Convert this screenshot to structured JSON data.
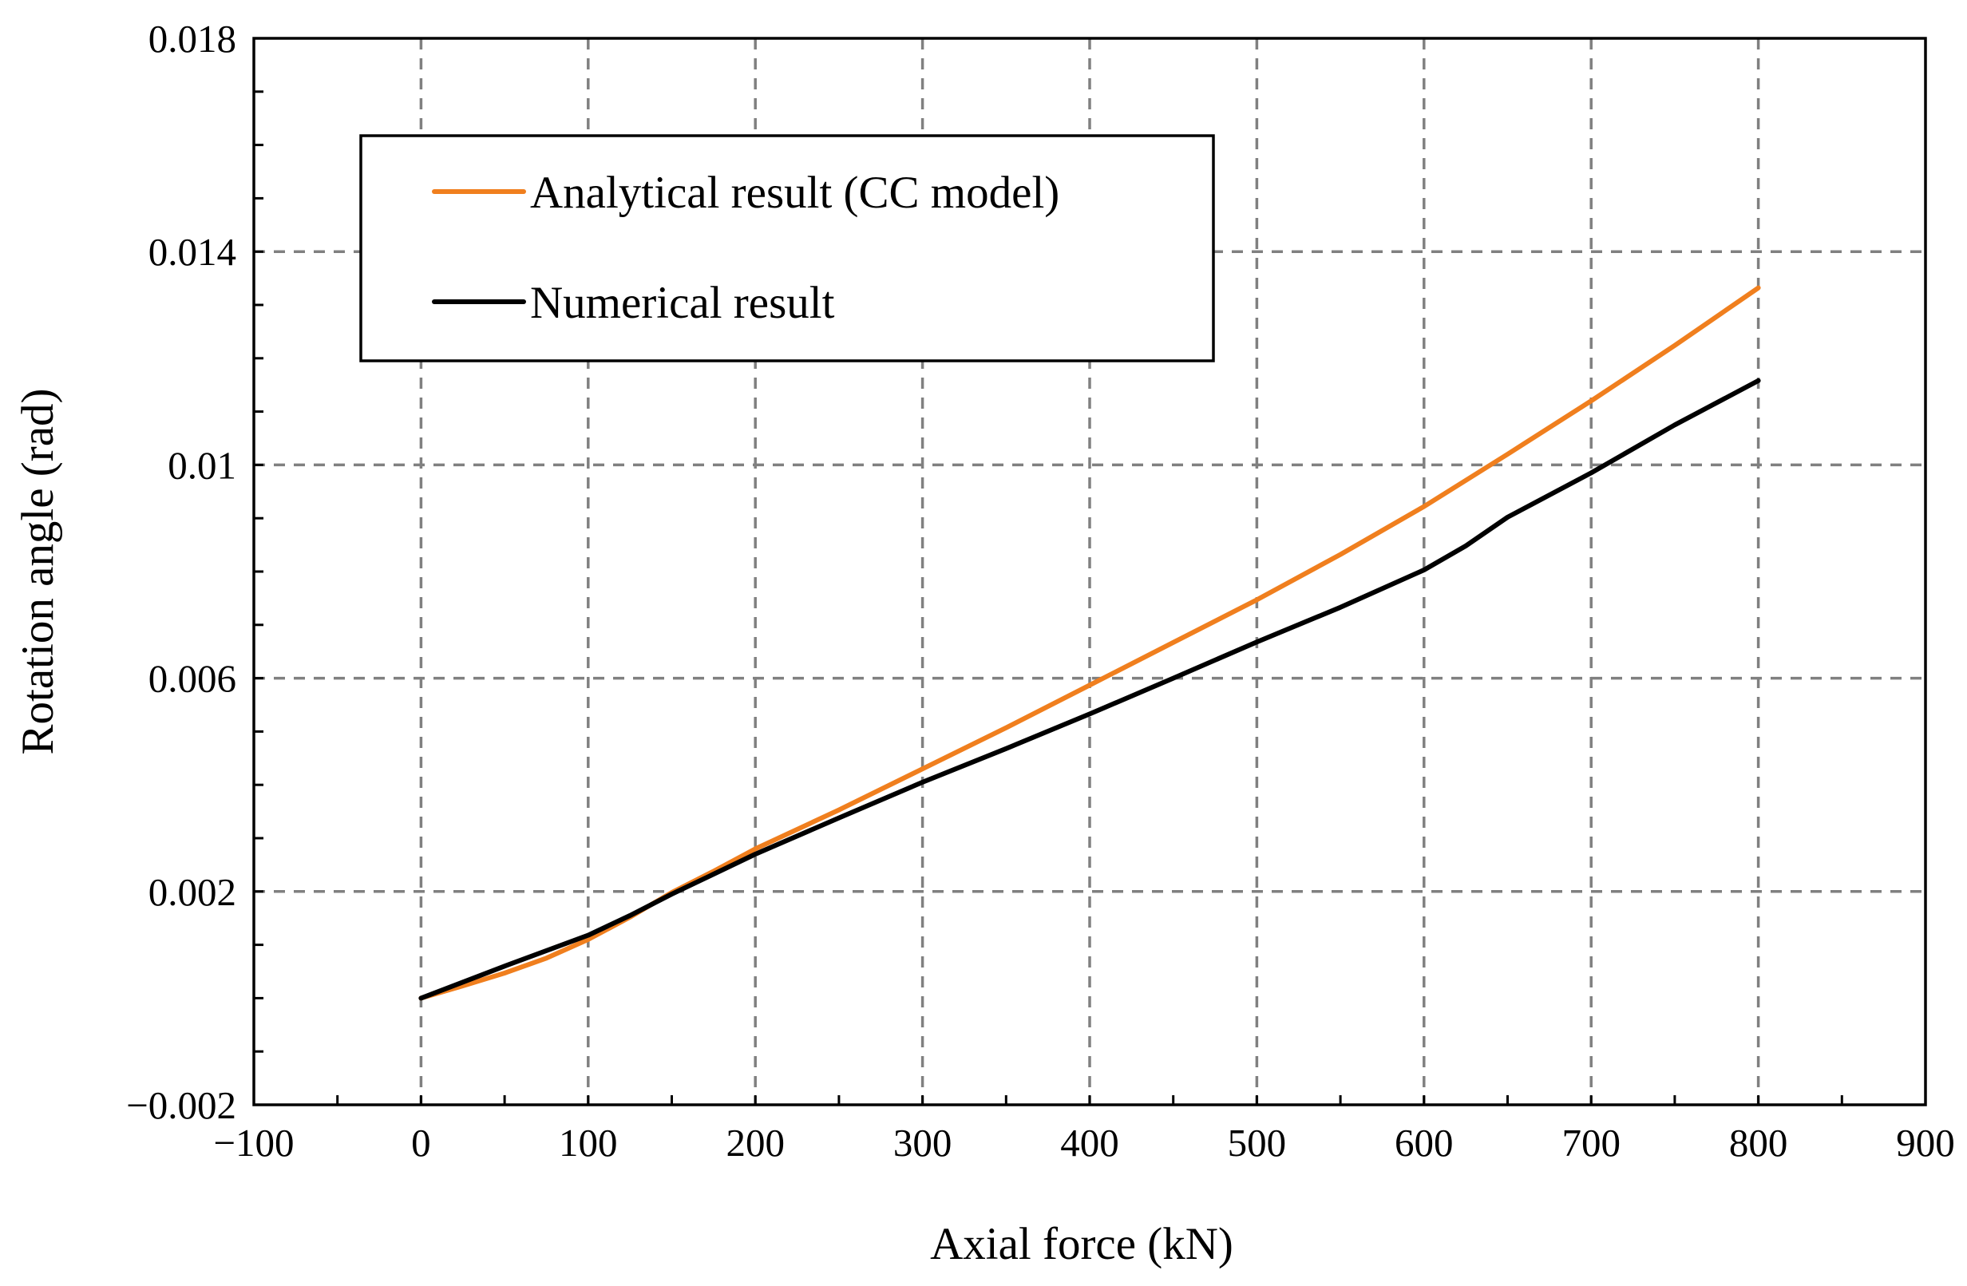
{
  "chart_data": {
    "type": "line",
    "title": "",
    "xlabel": "Axial force (kN)",
    "ylabel": "Rotation angle (rad)",
    "xlim": [
      -100,
      900
    ],
    "ylim": [
      -0.002,
      0.018
    ],
    "x_ticks": [
      -100,
      0,
      100,
      200,
      300,
      400,
      500,
      600,
      700,
      800,
      900
    ],
    "x_tick_labels": [
      "−100",
      "0",
      "100",
      "200",
      "300",
      "400",
      "500",
      "600",
      "700",
      "800",
      "900"
    ],
    "y_ticks": [
      -0.002,
      0.002,
      0.006,
      0.01,
      0.014,
      0.018
    ],
    "y_tick_labels": [
      "−0.002",
      "0.002",
      "0.006",
      "0.01",
      "0.014",
      "0.018"
    ],
    "x_minor_step": 50,
    "y_minor_step": 0.001,
    "grid": true,
    "legend": {
      "position": "top-left",
      "framed": true
    },
    "series": [
      {
        "name": "Analytical result (CC model)",
        "color": "#F07F1E",
        "x": [
          0,
          25,
          50,
          75,
          100,
          125,
          150,
          175,
          200,
          250,
          300,
          350,
          400,
          450,
          500,
          550,
          600,
          650,
          700,
          750,
          800
        ],
        "y": [
          0.0,
          0.00023,
          0.00047,
          0.00075,
          0.0011,
          0.00152,
          0.00198,
          0.00238,
          0.0028,
          0.00353,
          0.0043,
          0.00507,
          0.00587,
          0.00667,
          0.00747,
          0.00832,
          0.00922,
          0.0102,
          0.0112,
          0.01224,
          0.01332
        ]
      },
      {
        "name": "Numerical result",
        "color": "#000000",
        "x": [
          0,
          50,
          100,
          125,
          150,
          200,
          250,
          300,
          350,
          400,
          450,
          500,
          550,
          600,
          625,
          650,
          700,
          750,
          800
        ],
        "y": [
          0.0,
          0.0006,
          0.00118,
          0.00155,
          0.00195,
          0.0027,
          0.00338,
          0.00405,
          0.00468,
          0.00533,
          0.006,
          0.00668,
          0.00733,
          0.00803,
          0.00848,
          0.00902,
          0.00985,
          0.01075,
          0.01158
        ]
      }
    ]
  }
}
